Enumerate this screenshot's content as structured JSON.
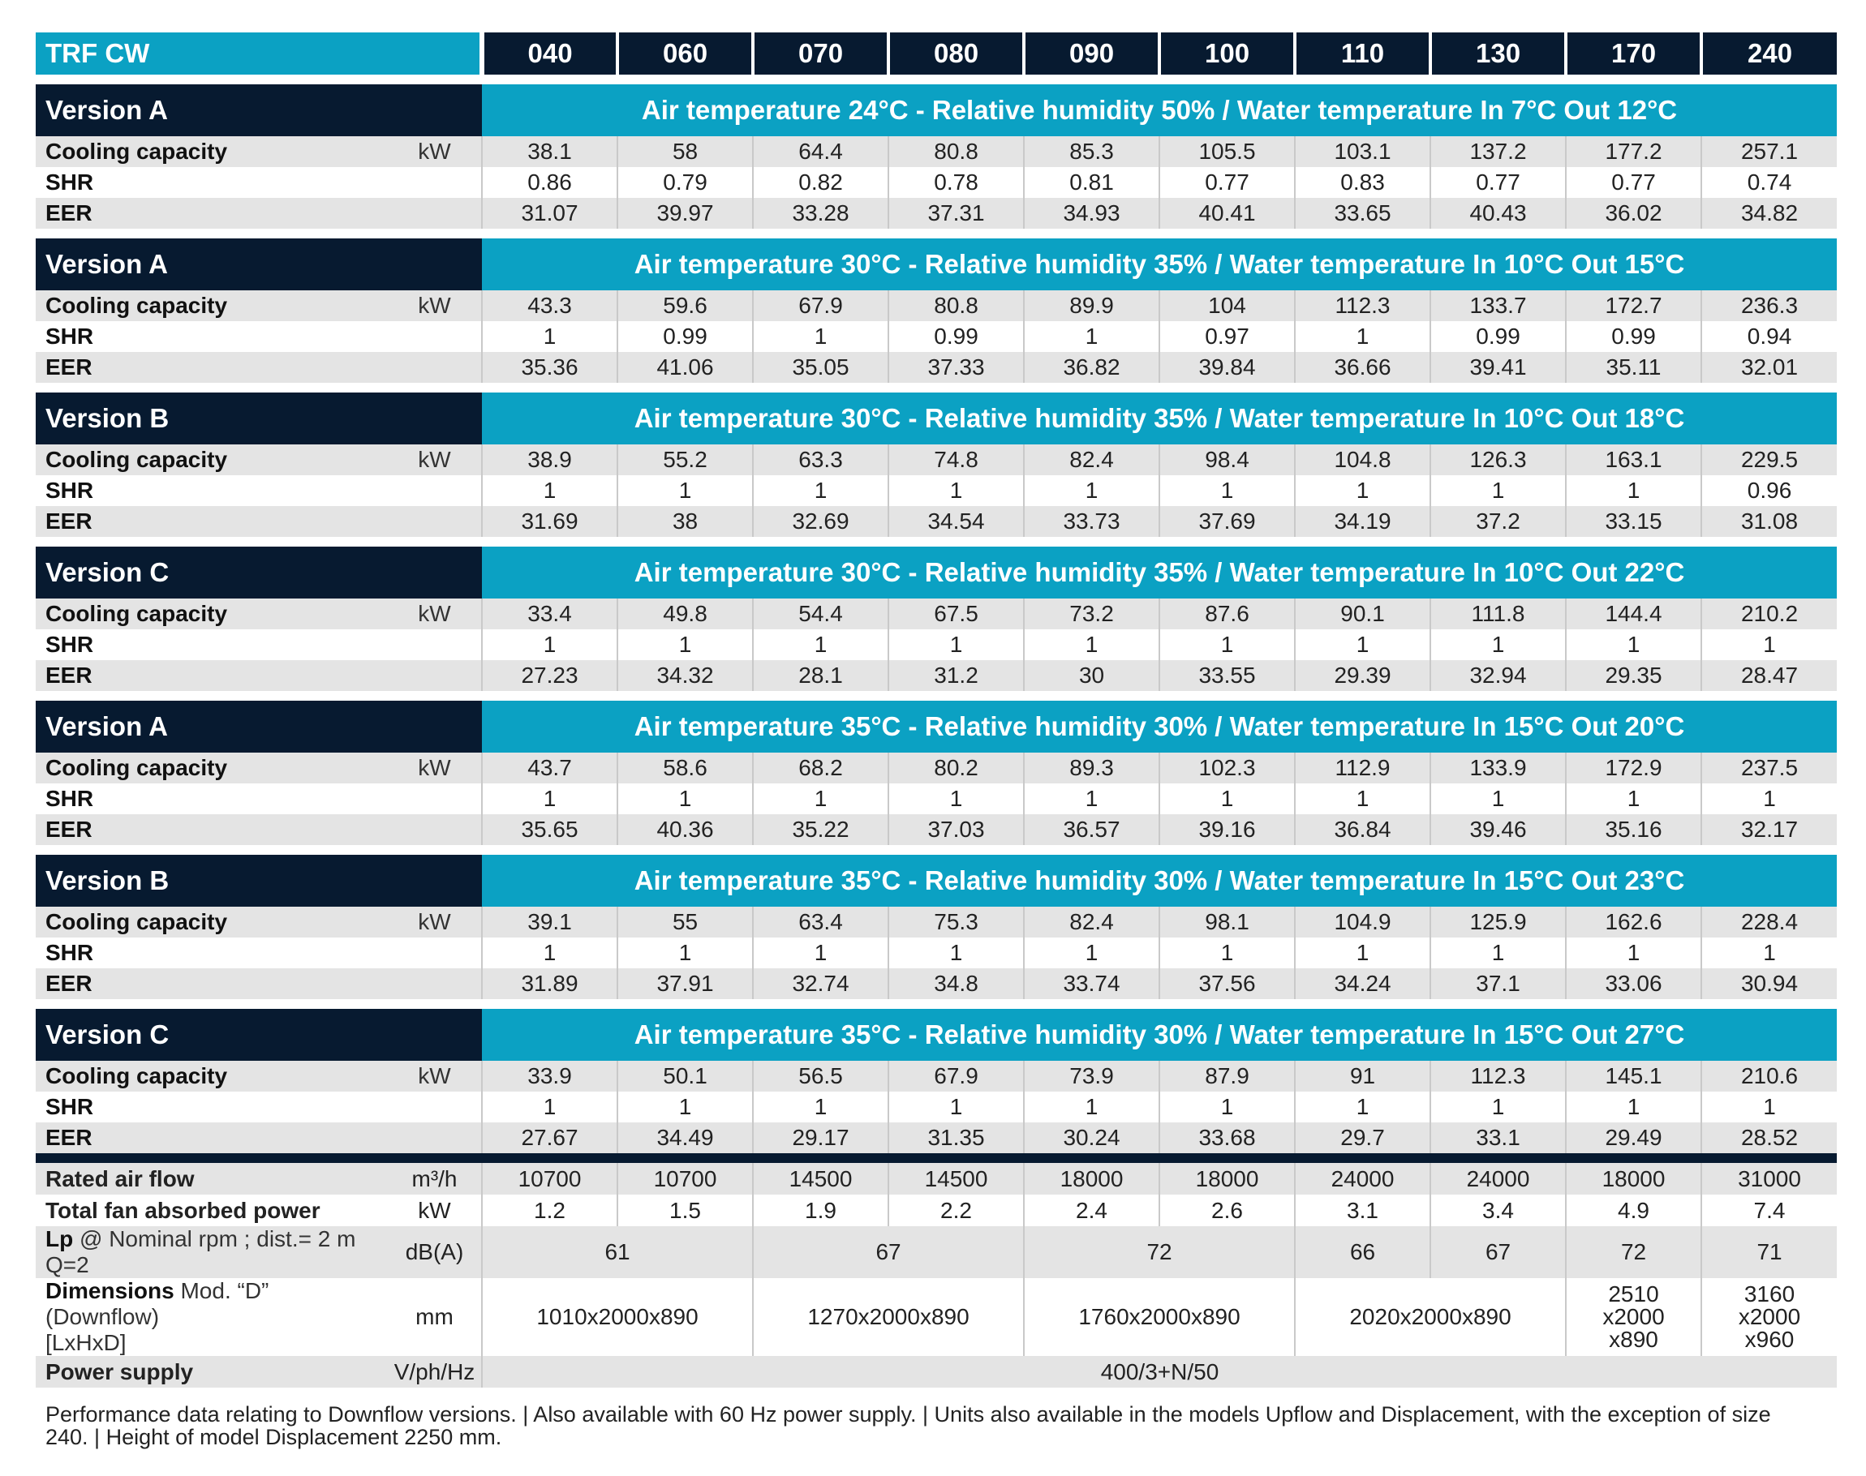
{
  "header": {
    "title": "TRF CW",
    "models": [
      "040",
      "060",
      "070",
      "080",
      "090",
      "100",
      "110",
      "130",
      "170",
      "240"
    ]
  },
  "row_labels": {
    "cooling": "Cooling capacity",
    "shr": "SHR",
    "eer": "EER",
    "cooling_unit": "kW"
  },
  "sections": [
    {
      "version": "Version A",
      "condition": "Air temperature 24°C - Relative humidity 50% / Water temperature In 7°C Out 12°C",
      "cooling": [
        "38.1",
        "58",
        "64.4",
        "80.8",
        "85.3",
        "105.5",
        "103.1",
        "137.2",
        "177.2",
        "257.1"
      ],
      "shr": [
        "0.86",
        "0.79",
        "0.82",
        "0.78",
        "0.81",
        "0.77",
        "0.83",
        "0.77",
        "0.77",
        "0.74"
      ],
      "eer": [
        "31.07",
        "39.97",
        "33.28",
        "37.31",
        "34.93",
        "40.41",
        "33.65",
        "40.43",
        "36.02",
        "34.82"
      ]
    },
    {
      "version": "Version A",
      "condition": "Air temperature 30°C - Relative humidity 35% / Water temperature In 10°C Out 15°C",
      "cooling": [
        "43.3",
        "59.6",
        "67.9",
        "80.8",
        "89.9",
        "104",
        "112.3",
        "133.7",
        "172.7",
        "236.3"
      ],
      "shr": [
        "1",
        "0.99",
        "1",
        "0.99",
        "1",
        "0.97",
        "1",
        "0.99",
        "0.99",
        "0.94"
      ],
      "eer": [
        "35.36",
        "41.06",
        "35.05",
        "37.33",
        "36.82",
        "39.84",
        "36.66",
        "39.41",
        "35.11",
        "32.01"
      ]
    },
    {
      "version": "Version B",
      "condition": "Air temperature 30°C - Relative humidity 35% / Water temperature In 10°C Out 18°C",
      "cooling": [
        "38.9",
        "55.2",
        "63.3",
        "74.8",
        "82.4",
        "98.4",
        "104.8",
        "126.3",
        "163.1",
        "229.5"
      ],
      "shr": [
        "1",
        "1",
        "1",
        "1",
        "1",
        "1",
        "1",
        "1",
        "1",
        "0.96"
      ],
      "eer": [
        "31.69",
        "38",
        "32.69",
        "34.54",
        "33.73",
        "37.69",
        "34.19",
        "37.2",
        "33.15",
        "31.08"
      ]
    },
    {
      "version": "Version C",
      "condition": "Air temperature 30°C - Relative humidity 35% / Water temperature In 10°C Out 22°C",
      "cooling": [
        "33.4",
        "49.8",
        "54.4",
        "67.5",
        "73.2",
        "87.6",
        "90.1",
        "111.8",
        "144.4",
        "210.2"
      ],
      "shr": [
        "1",
        "1",
        "1",
        "1",
        "1",
        "1",
        "1",
        "1",
        "1",
        "1"
      ],
      "eer": [
        "27.23",
        "34.32",
        "28.1",
        "31.2",
        "30",
        "33.55",
        "29.39",
        "32.94",
        "29.35",
        "28.47"
      ]
    },
    {
      "version": "Version A",
      "condition": "Air temperature 35°C - Relative humidity 30% / Water temperature In 15°C Out 20°C",
      "cooling": [
        "43.7",
        "58.6",
        "68.2",
        "80.2",
        "89.3",
        "102.3",
        "112.9",
        "133.9",
        "172.9",
        "237.5"
      ],
      "shr": [
        "1",
        "1",
        "1",
        "1",
        "1",
        "1",
        "1",
        "1",
        "1",
        "1"
      ],
      "eer": [
        "35.65",
        "40.36",
        "35.22",
        "37.03",
        "36.57",
        "39.16",
        "36.84",
        "39.46",
        "35.16",
        "32.17"
      ]
    },
    {
      "version": "Version B",
      "condition": "Air temperature 35°C - Relative humidity 30% / Water temperature In 15°C Out 23°C",
      "cooling": [
        "39.1",
        "55",
        "63.4",
        "75.3",
        "82.4",
        "98.1",
        "104.9",
        "125.9",
        "162.6",
        "228.4"
      ],
      "shr": [
        "1",
        "1",
        "1",
        "1",
        "1",
        "1",
        "1",
        "1",
        "1",
        "1"
      ],
      "eer": [
        "31.89",
        "37.91",
        "32.74",
        "34.8",
        "33.74",
        "37.56",
        "34.24",
        "37.1",
        "33.06",
        "30.94"
      ]
    },
    {
      "version": "Version C",
      "condition": "Air temperature 35°C - Relative humidity 30% / Water temperature In 15°C Out 27°C",
      "cooling": [
        "33.9",
        "50.1",
        "56.5",
        "67.9",
        "73.9",
        "87.9",
        "91",
        "112.3",
        "145.1",
        "210.6"
      ],
      "shr": [
        "1",
        "1",
        "1",
        "1",
        "1",
        "1",
        "1",
        "1",
        "1",
        "1"
      ],
      "eer": [
        "27.67",
        "34.49",
        "29.17",
        "31.35",
        "30.24",
        "33.68",
        "29.7",
        "33.1",
        "29.49",
        "28.52"
      ]
    }
  ],
  "specs": {
    "airflow": {
      "label": "Rated air flow",
      "unit": "m³/h",
      "values": [
        "10700",
        "10700",
        "14500",
        "14500",
        "18000",
        "18000",
        "24000",
        "24000",
        "18000",
        "31000"
      ]
    },
    "fan_power": {
      "label": "Total fan absorbed power",
      "unit": "kW",
      "values": [
        "1.2",
        "1.5",
        "1.9",
        "2.2",
        "2.4",
        "2.6",
        "3.1",
        "3.4",
        "4.9",
        "7.4"
      ]
    },
    "lp": {
      "label_bold": "Lp",
      "label_rest": " @ Nominal rpm ; dist.= 2 m Q=2",
      "unit": "dB(A)",
      "values": [
        "61",
        "67",
        "72",
        "66",
        "67",
        "72",
        "71"
      ]
    },
    "dimensions": {
      "label_bold": "Dimensions",
      "label_rest": " Mod. “D” (Downflow)",
      "label_line2": "[LxHxD]",
      "unit": "mm",
      "values": [
        "1010x2000x890",
        "1270x2000x890",
        "1760x2000x890",
        "2020x2000x890"
      ],
      "v170": [
        "2510",
        "x2000",
        "x890"
      ],
      "v240": [
        "3160",
        "x2000",
        "x960"
      ]
    },
    "power": {
      "label": "Power supply",
      "unit": "V/ph/Hz",
      "value": "400/3+N/50"
    }
  },
  "footnote": "Performance data relating to Downflow versions. | Also available with 60 Hz power supply. | Units also available in the models Upflow and Displacement, with the exception of size 240. | Height of model Displacement 2250 mm."
}
